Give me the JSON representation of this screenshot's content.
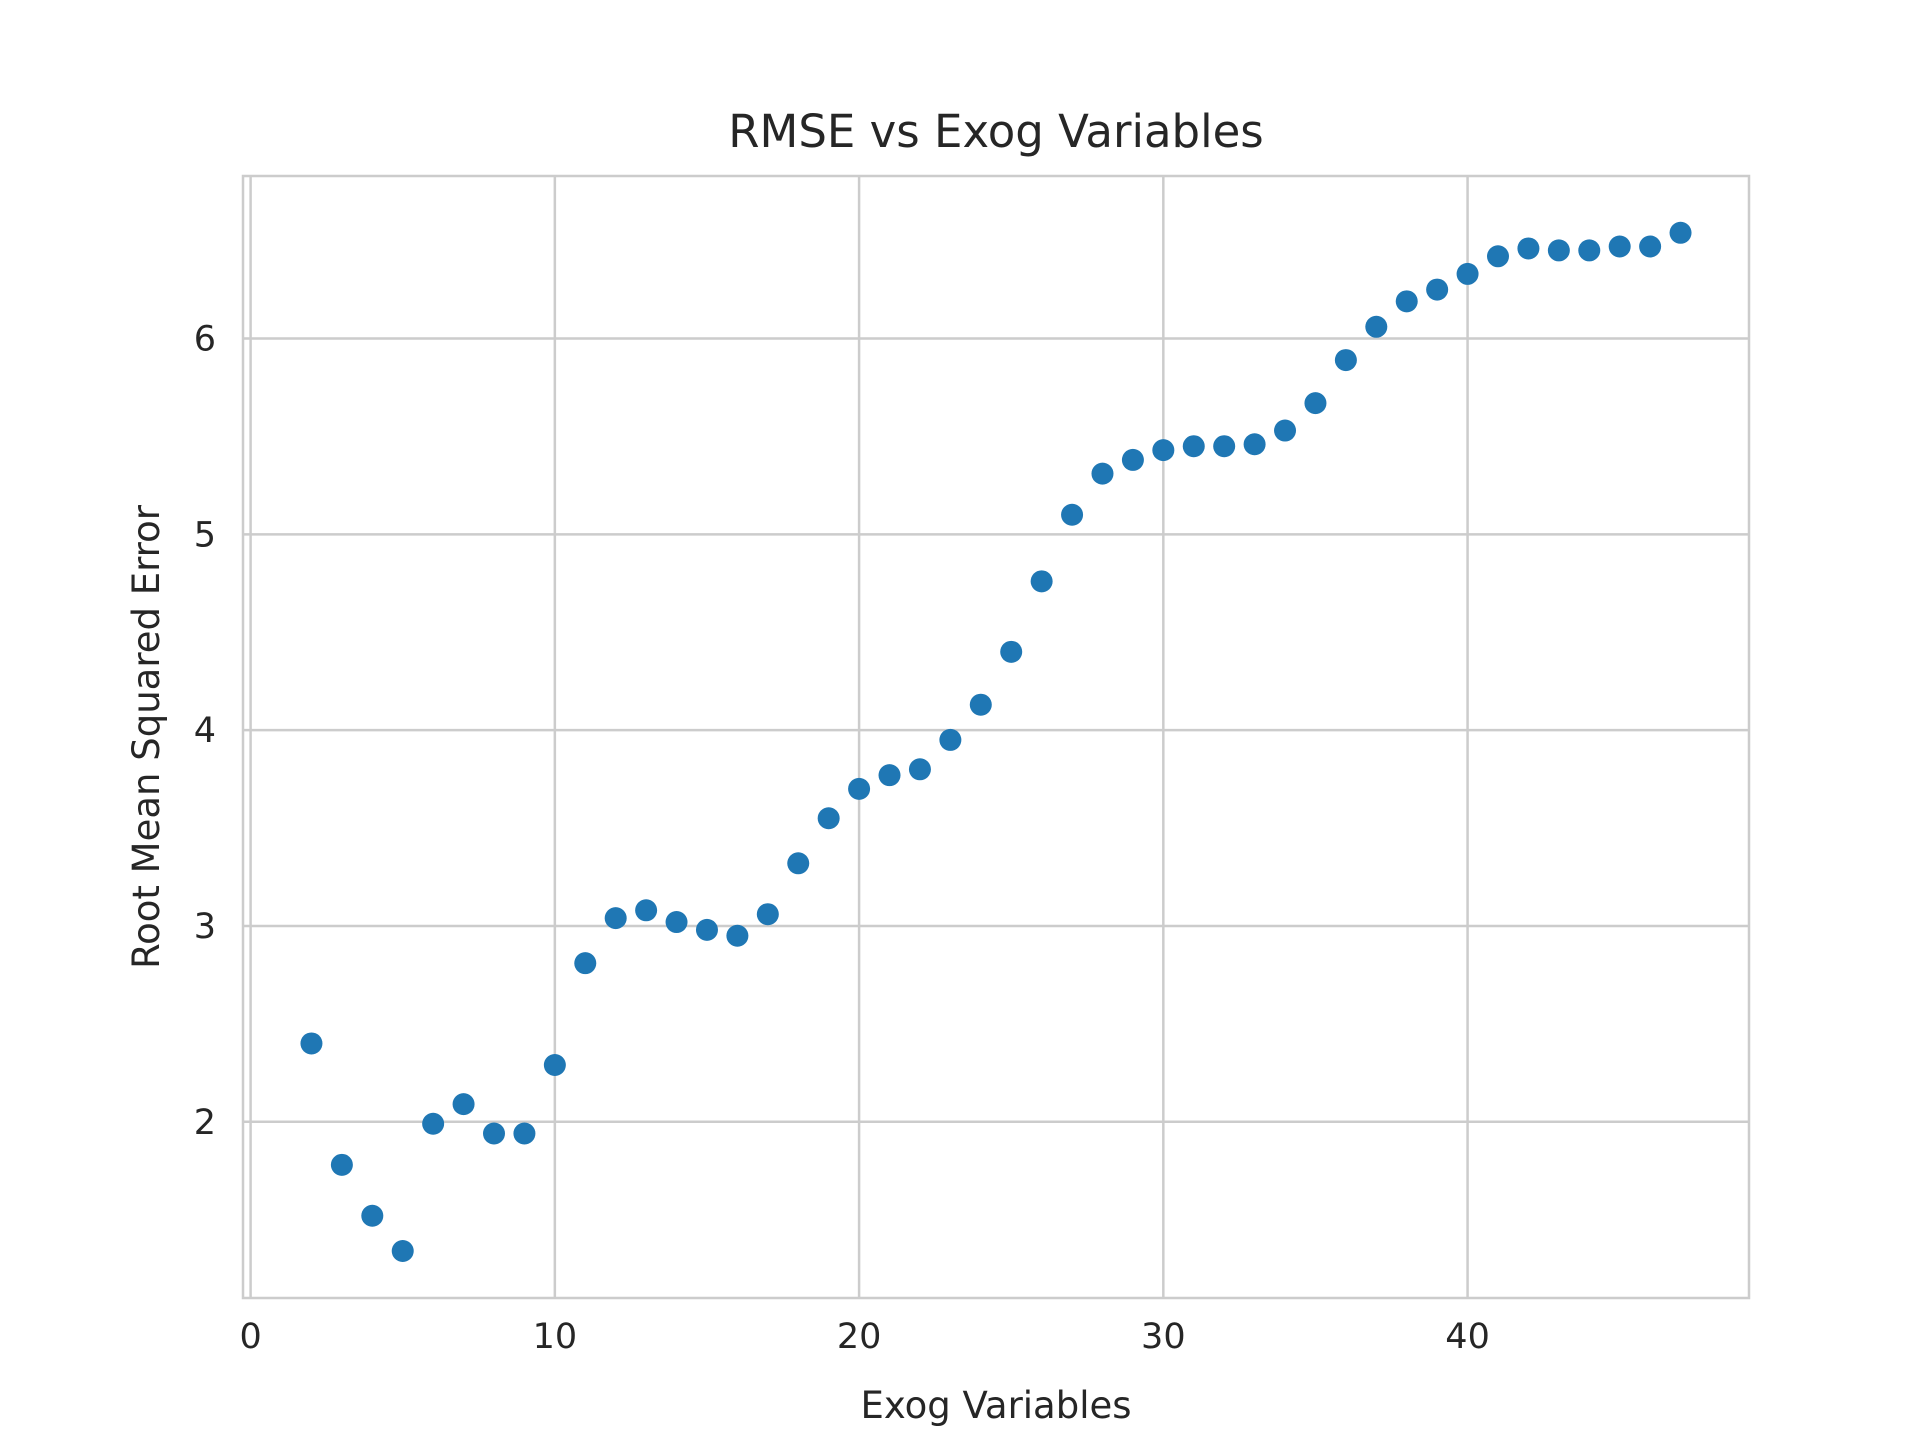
{
  "chart_data": {
    "type": "scatter",
    "title": "RMSE vs Exog Variables",
    "xlabel": "Exog Variables",
    "ylabel": "Root Mean Squared Error",
    "xlim": [
      -0.25,
      49.25
    ],
    "ylim": [
      1.1,
      6.83
    ],
    "xticks": [
      0,
      10,
      20,
      30,
      40
    ],
    "yticks": [
      2,
      3,
      4,
      5,
      6
    ],
    "grid": true,
    "legend": false,
    "marker_color": "#1f77b4",
    "series": [
      {
        "x": [
          2,
          3,
          4,
          5,
          6,
          7,
          8,
          9,
          10,
          11,
          12,
          13,
          14,
          15,
          16,
          17,
          18,
          19,
          20,
          21,
          22,
          23,
          24,
          25,
          26,
          27,
          28,
          29,
          30,
          31,
          32,
          33,
          34,
          35,
          36,
          37,
          38,
          39,
          40,
          41,
          42,
          43,
          44,
          45,
          46,
          47
        ],
        "y": [
          2.4,
          1.78,
          1.52,
          1.34,
          1.99,
          2.09,
          1.94,
          1.94,
          2.29,
          2.81,
          3.04,
          3.08,
          3.02,
          2.98,
          2.95,
          3.06,
          3.32,
          3.55,
          3.7,
          3.77,
          3.8,
          3.95,
          4.13,
          4.4,
          4.76,
          5.1,
          5.31,
          5.38,
          5.43,
          5.45,
          5.45,
          5.46,
          5.53,
          5.67,
          5.89,
          6.06,
          6.19,
          6.25,
          6.33,
          6.42,
          6.46,
          6.45,
          6.45,
          6.47,
          6.47,
          6.54
        ]
      }
    ]
  }
}
